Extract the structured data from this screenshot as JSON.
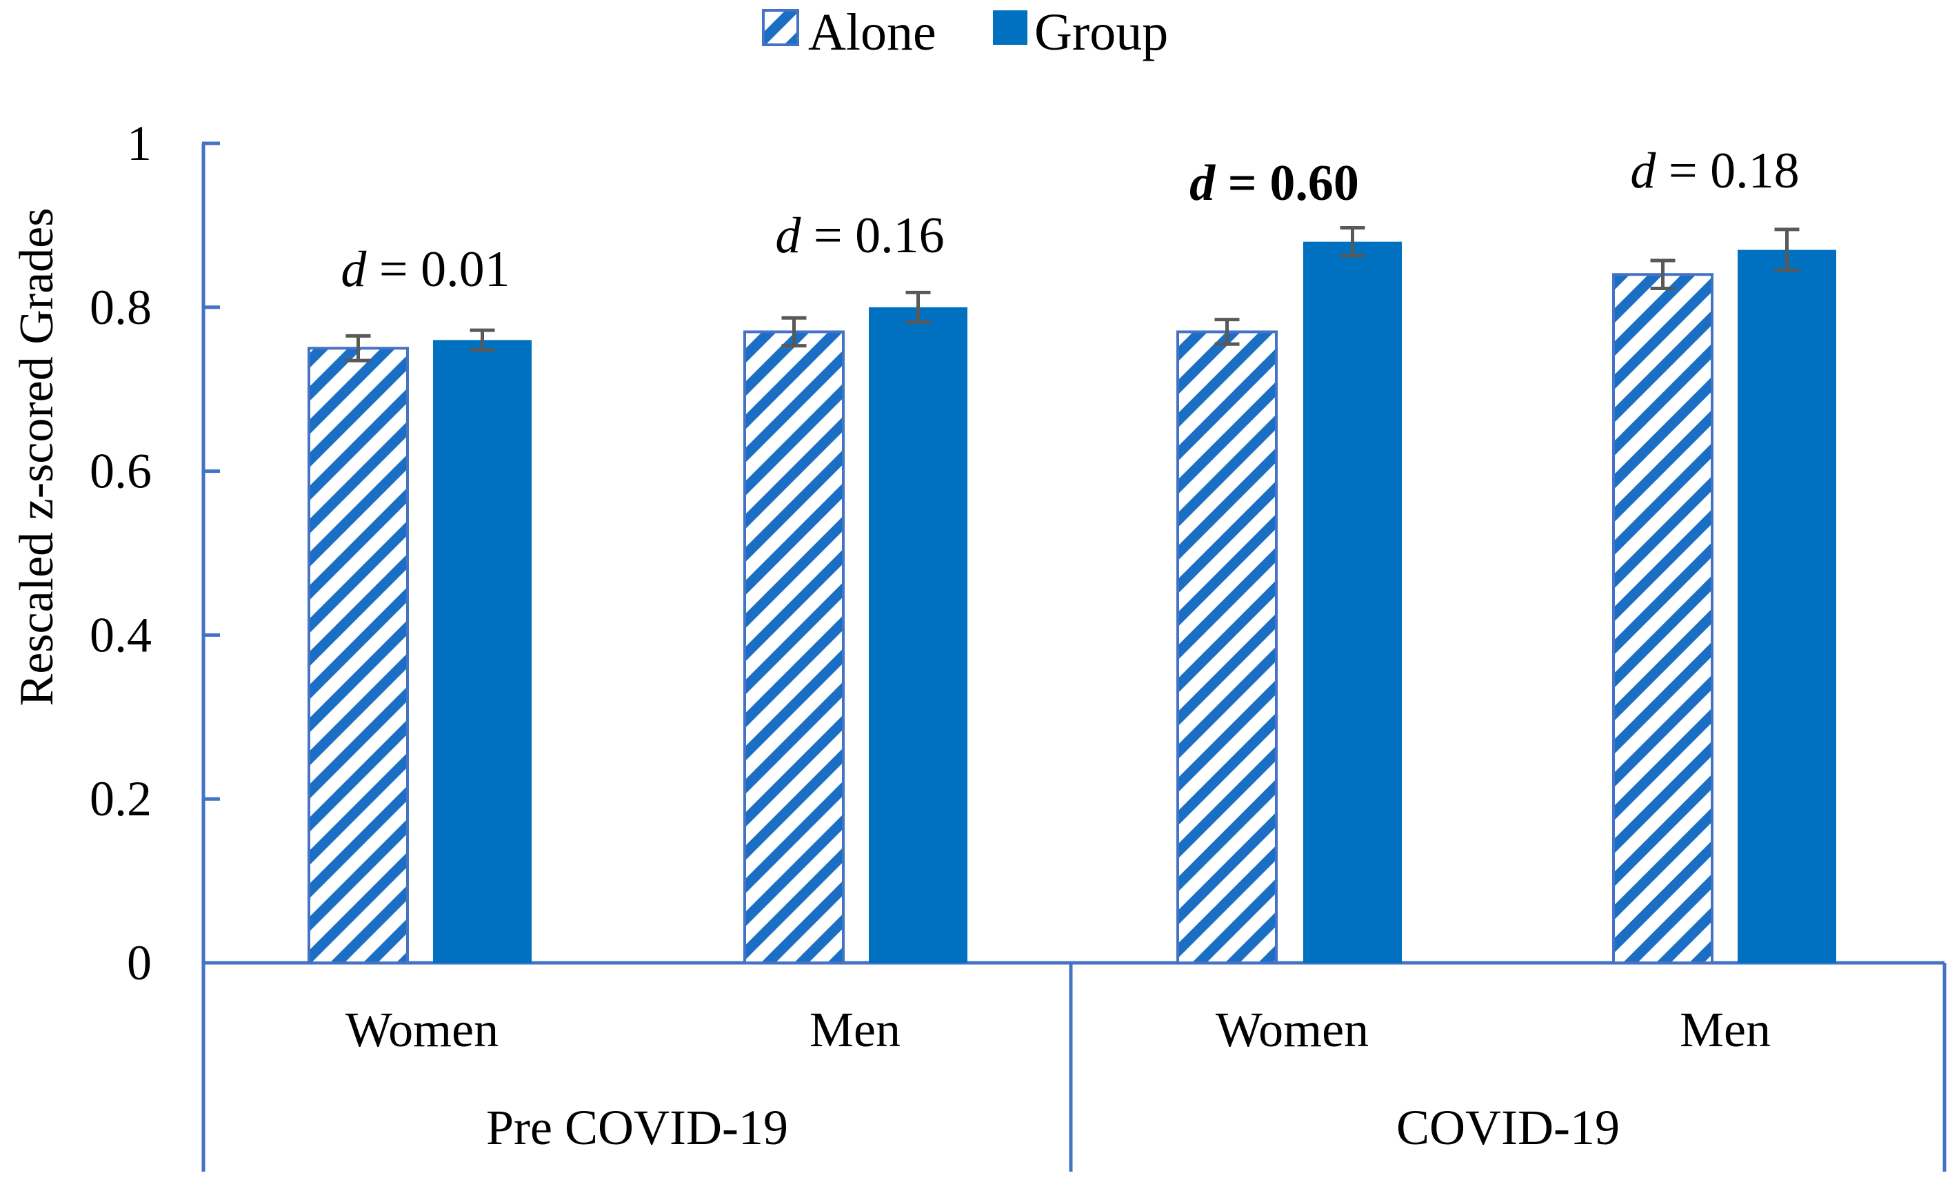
{
  "chart_data": {
    "type": "bar",
    "ylabel": "Rescaled z-scored Grades",
    "ylim": [
      0,
      1
    ],
    "yticks": [
      0,
      0.2,
      0.4,
      0.6,
      0.8,
      1
    ],
    "ytick_labels": [
      "0",
      "0.2",
      "0.4",
      "0.6",
      "0.8",
      "1"
    ],
    "groups": [
      {
        "name": "Pre COVID-19",
        "categories": [
          "Women",
          "Men"
        ]
      },
      {
        "name": "COVID-19",
        "categories": [
          "Women",
          "Men"
        ]
      }
    ],
    "categories": [
      "Women",
      "Men",
      "Women",
      "Men"
    ],
    "series": [
      {
        "name": "Alone",
        "pattern": "hatched",
        "color": "#1a6fc4",
        "values": [
          0.75,
          0.77,
          0.77,
          0.84
        ],
        "errors": [
          0.015,
          0.017,
          0.015,
          0.017
        ]
      },
      {
        "name": "Group",
        "pattern": "solid",
        "color": "#0070c0",
        "values": [
          0.76,
          0.8,
          0.88,
          0.87
        ],
        "errors": [
          0.012,
          0.018,
          0.017,
          0.025
        ]
      }
    ],
    "annotations": [
      {
        "italic": "d",
        "rest": " = 0.01",
        "bold": false
      },
      {
        "italic": "d",
        "rest": " = 0.16",
        "bold": false
      },
      {
        "italic": "d",
        "rest": " = 0.60",
        "bold": true
      },
      {
        "italic": "d",
        "rest": " = 0.18",
        "bold": false
      }
    ],
    "legend_position": "top-center",
    "colors": {
      "axis": "#4472c4",
      "bar_outline": "#4472c4",
      "error_bar": "#595959"
    }
  }
}
